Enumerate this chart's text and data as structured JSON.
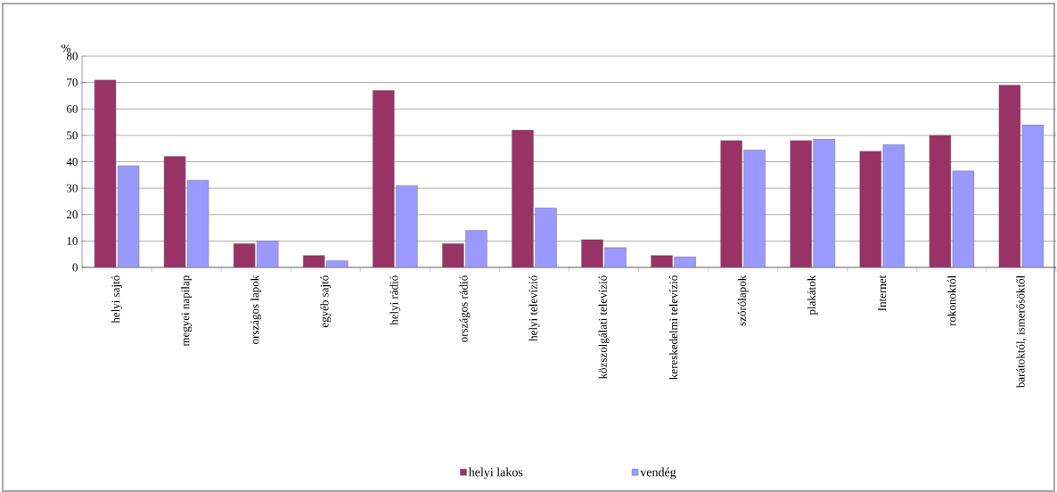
{
  "chart_data": {
    "type": "bar",
    "ylabel": "%",
    "categories": [
      "helyi sajtó",
      "megyei napilap",
      "országos lapok",
      "egyéb sajtó",
      "helyi rádió",
      "országos rádió",
      "helyi televízió",
      "közszolgálati televízió",
      "kereskedelmi televízió",
      "szórólapok",
      "plakátok",
      "Internet",
      "rokonoktól",
      "barátoktól, ismerősöktől"
    ],
    "series": [
      {
        "name": "helyi lakos",
        "color": "#993366",
        "values": [
          71,
          42,
          9,
          4.5,
          67,
          9,
          52,
          10.5,
          4.5,
          48,
          48,
          44,
          50,
          69
        ]
      },
      {
        "name": "vendég",
        "color": "#9999ff",
        "values": [
          38.5,
          33,
          10,
          2.5,
          31,
          14,
          22.5,
          7.5,
          4,
          44.5,
          48.5,
          46.5,
          36.5,
          54
        ]
      }
    ],
    "ylim": [
      0,
      80
    ],
    "yticks": [
      0,
      10,
      20,
      30,
      40,
      50,
      60,
      70,
      80
    ],
    "grid": "y",
    "legend": "bottom"
  }
}
